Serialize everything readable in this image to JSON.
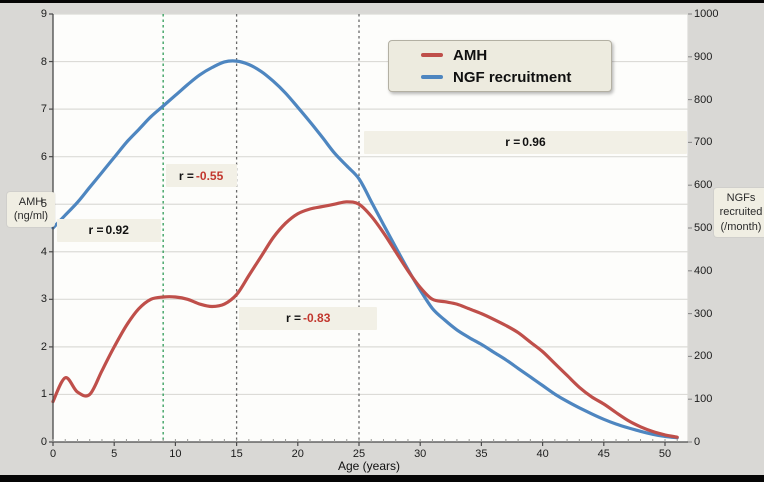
{
  "colors": {
    "amh": "#bf4f4a",
    "ngf": "#4e86c0",
    "page_bg": "#d9d8d5",
    "plot_bg": "#fdfdfb",
    "grid": "#dcdbd7",
    "axis_line": "#4a4a4a",
    "band_bg": "#f2f0e6",
    "legend_bg": "#edebdf",
    "negative_value_text": "#c2372e",
    "vline_green": "#2e9b57",
    "vline_gray": "#6a6a6a"
  },
  "axes": {
    "left": {
      "label_box": "AMH\n(ng/ml)",
      "ticks": [
        0,
        1,
        2,
        3,
        4,
        5,
        6,
        7,
        8,
        9
      ]
    },
    "right": {
      "label_box": "NGFs\nrecruited\n(/month)",
      "ticks": [
        0,
        100,
        200,
        300,
        400,
        500,
        600,
        700,
        800,
        900,
        1000
      ]
    },
    "bottom": {
      "label": "Age (years)",
      "ticks": [
        0,
        5,
        10,
        15,
        20,
        25,
        30,
        35,
        40,
        45,
        50
      ]
    }
  },
  "legend": {
    "items": [
      {
        "label": "AMH",
        "color": "#bf4f4a"
      },
      {
        "label": "NGF recruitment",
        "color": "#4e86c0"
      }
    ]
  },
  "annotations": [
    {
      "prefix": "r = ",
      "value": "0.92",
      "value_is_negative": false,
      "age_from": 0.3,
      "age_to": 8.8,
      "y_left": 4.45
    },
    {
      "prefix": "r = ",
      "value": "-0.55",
      "value_is_negative": true,
      "age_from": 9.2,
      "age_to": 15.0,
      "y_left": 5.6
    },
    {
      "prefix": "r = ",
      "value": "-0.83",
      "value_is_negative": true,
      "age_from": 15.2,
      "age_to": 26.5,
      "y_left": 2.6
    },
    {
      "prefix": "r = ",
      "value": "0.96",
      "value_is_negative": false,
      "age_from": 25.4,
      "age_to": 51.8,
      "y_left": 6.3
    }
  ],
  "reference_lines": [
    {
      "age": 9,
      "color": "#2e9b57"
    },
    {
      "age": 15,
      "color": "#6a6a6a"
    },
    {
      "age": 25,
      "color": "#6a6a6a"
    }
  ],
  "chart_data": {
    "type": "line",
    "title": "",
    "xlabel": "Age (years)",
    "ylabel_left": "AMH (ng/ml)",
    "ylabel_right": "NGFs recruited (/month)",
    "xlim": [
      0,
      52
    ],
    "ylim_left": [
      0,
      9
    ],
    "ylim_right": [
      0,
      1000
    ],
    "grid": "horizontal",
    "legend_position": "top-center",
    "x": [
      0,
      1,
      2,
      3,
      4,
      5,
      6,
      7,
      8,
      9,
      10,
      11,
      12,
      13,
      14,
      15,
      16,
      17,
      18,
      19,
      20,
      21,
      22,
      23,
      24,
      25,
      26,
      27,
      28,
      29,
      30,
      31,
      32,
      33,
      34,
      35,
      36,
      37,
      38,
      39,
      40,
      41,
      42,
      43,
      44,
      45,
      46,
      47,
      48,
      49,
      50,
      51
    ],
    "series": [
      {
        "name": "AMH",
        "axis": "left",
        "color": "#bf4f4a",
        "values": [
          0.85,
          1.35,
          1.05,
          1.0,
          1.5,
          2.0,
          2.45,
          2.8,
          3.0,
          3.05,
          3.05,
          3.0,
          2.9,
          2.85,
          2.9,
          3.1,
          3.5,
          3.9,
          4.3,
          4.6,
          4.8,
          4.9,
          4.95,
          5.0,
          5.05,
          5.0,
          4.75,
          4.4,
          4.0,
          3.6,
          3.25,
          3.0,
          2.95,
          2.9,
          2.8,
          2.7,
          2.58,
          2.45,
          2.3,
          2.1,
          1.9,
          1.65,
          1.4,
          1.15,
          0.95,
          0.8,
          0.62,
          0.45,
          0.32,
          0.22,
          0.15,
          0.1
        ]
      },
      {
        "name": "NGF recruitment",
        "axis": "right",
        "color": "#4e86c0",
        "values": [
          500,
          530,
          560,
          595,
          630,
          665,
          700,
          730,
          760,
          785,
          810,
          835,
          858,
          875,
          888,
          890,
          882,
          866,
          843,
          815,
          782,
          748,
          712,
          675,
          645,
          615,
          562,
          508,
          455,
          403,
          355,
          312,
          285,
          262,
          244,
          228,
          210,
          192,
          172,
          152,
          132,
          112,
          95,
          80,
          66,
          53,
          42,
          33,
          25,
          18,
          13,
          10
        ]
      }
    ],
    "correlation_annotations": [
      {
        "text": "r = 0.92",
        "age_range": [
          0,
          9
        ]
      },
      {
        "text": "r = -0.55",
        "age_range": [
          9,
          15
        ]
      },
      {
        "text": "r = -0.83",
        "age_range": [
          15,
          26
        ]
      },
      {
        "text": "r = 0.96",
        "age_range": [
          25,
          51
        ]
      }
    ]
  }
}
